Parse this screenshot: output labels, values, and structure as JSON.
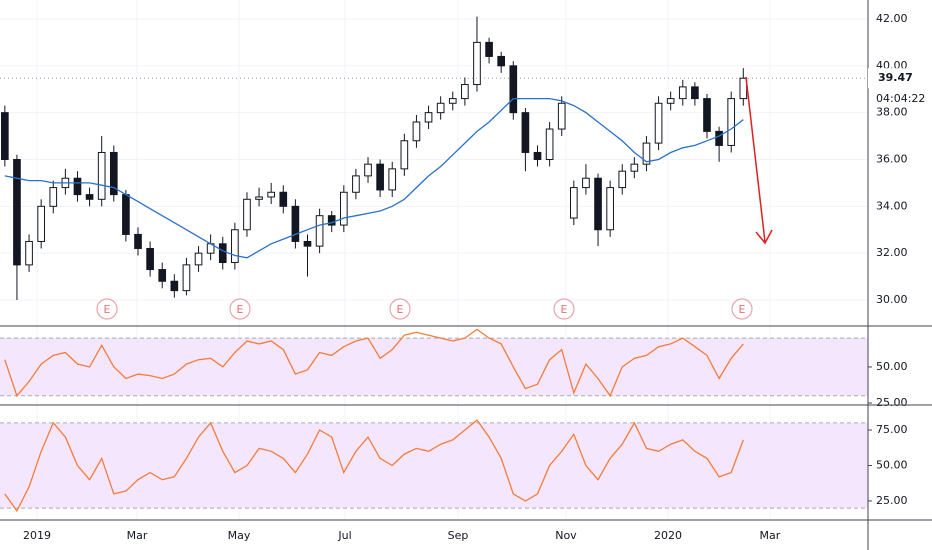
{
  "chart_data": {
    "type": "candlestick",
    "xlim": [
      -0.4,
      71.3
    ],
    "xticks": [
      {
        "value": 2.66,
        "label": "2019"
      },
      {
        "value": 10.92,
        "label": "Mar"
      },
      {
        "value": 19.34,
        "label": "May"
      },
      {
        "value": 28.1,
        "label": "Jul"
      },
      {
        "value": 37.43,
        "label": "Sep"
      },
      {
        "value": 46.35,
        "label": "Nov"
      },
      {
        "value": 54.78,
        "label": "2020"
      },
      {
        "value": 63.2,
        "label": "Mar"
      }
    ],
    "ylim": [
      28.89,
      42.81
    ],
    "yticks": [
      {
        "value": 30,
        "label": "30.00"
      },
      {
        "value": 32,
        "label": "32.00"
      },
      {
        "value": 34,
        "label": "34.00"
      },
      {
        "value": 36,
        "label": "36.00"
      },
      {
        "value": 38,
        "label": "38.00"
      },
      {
        "value": 40,
        "label": "40.00"
      },
      {
        "value": 42,
        "label": "42.00"
      }
    ],
    "grid": true,
    "current_price": 39.47,
    "countdown": "04:04:22",
    "earnings_labels": [
      "E",
      "E",
      "E",
      "E",
      "E"
    ],
    "open": [
      38.0,
      36.0,
      31.5,
      32.5,
      34.0,
      34.8,
      35.2,
      34.5,
      34.3,
      36.3,
      34.5,
      32.8,
      32.2,
      31.3,
      30.8,
      30.4,
      31.5,
      32.0,
      32.4,
      31.6,
      33.0,
      34.3,
      34.4,
      34.6,
      34.0,
      32.5,
      32.3,
      33.6,
      33.2,
      34.6,
      35.3,
      35.8,
      34.7,
      35.6,
      36.8,
      37.6,
      38.0,
      38.4,
      38.6,
      39.2,
      41.0,
      40.4,
      40.0,
      38.0,
      36.3,
      36.0,
      37.3,
      33.5,
      34.8,
      35.2,
      33.0,
      34.8,
      35.5,
      35.8,
      36.7,
      38.4,
      38.6,
      39.1,
      38.6,
      37.2,
      36.6,
      38.6
    ],
    "high": [
      38.3,
      36.2,
      32.8,
      34.3,
      35.1,
      35.6,
      35.5,
      34.8,
      37.0,
      36.6,
      34.7,
      33.1,
      32.5,
      31.6,
      31.1,
      31.8,
      32.3,
      32.8,
      32.7,
      33.3,
      34.6,
      34.8,
      35.0,
      34.9,
      34.3,
      32.8,
      33.9,
      33.8,
      34.9,
      35.6,
      36.1,
      36.0,
      35.9,
      37.1,
      37.9,
      38.3,
      38.7,
      38.9,
      39.5,
      42.1,
      41.2,
      40.6,
      40.2,
      38.2,
      36.6,
      37.6,
      38.7,
      35.1,
      35.8,
      35.4,
      35.1,
      35.8,
      36.1,
      37.0,
      38.7,
      38.9,
      39.4,
      39.3,
      38.8,
      37.4,
      38.9,
      39.9
    ],
    "low": [
      35.7,
      30.0,
      31.2,
      32.2,
      33.7,
      34.5,
      34.2,
      34.0,
      34.0,
      34.2,
      32.5,
      31.9,
      31.0,
      30.5,
      30.1,
      30.2,
      31.2,
      31.7,
      31.3,
      31.3,
      32.7,
      34.0,
      34.1,
      33.7,
      32.2,
      31.0,
      32.0,
      32.9,
      32.9,
      34.3,
      35.0,
      34.4,
      34.4,
      35.3,
      36.5,
      37.3,
      37.7,
      38.1,
      38.3,
      38.9,
      40.1,
      39.7,
      37.7,
      35.5,
      35.7,
      35.7,
      37.0,
      33.2,
      34.5,
      32.3,
      32.7,
      34.5,
      35.2,
      35.5,
      36.4,
      38.1,
      38.3,
      38.3,
      36.9,
      35.9,
      36.3,
      38.3
    ],
    "close": [
      36.0,
      31.5,
      32.5,
      34.0,
      34.8,
      35.2,
      34.5,
      34.3,
      36.3,
      34.5,
      32.8,
      32.2,
      31.3,
      30.8,
      30.4,
      31.5,
      32.0,
      32.4,
      31.6,
      33.0,
      34.3,
      34.4,
      34.6,
      34.0,
      32.5,
      32.3,
      33.6,
      33.2,
      34.6,
      35.3,
      35.8,
      34.7,
      35.6,
      36.8,
      37.6,
      38.0,
      38.4,
      38.6,
      39.2,
      41.0,
      40.4,
      40.0,
      38.0,
      36.3,
      36.0,
      37.3,
      38.4,
      34.8,
      35.2,
      33.0,
      34.8,
      35.5,
      35.8,
      36.7,
      38.4,
      38.6,
      39.1,
      38.6,
      37.2,
      36.6,
      38.6,
      39.47
    ],
    "ma": {
      "color": "#2a72c9",
      "values": [
        35.3,
        35.2,
        35.1,
        35.1,
        35.0,
        35.0,
        35.0,
        35.0,
        34.9,
        34.8,
        34.5,
        34.2,
        33.9,
        33.6,
        33.3,
        33.0,
        32.7,
        32.4,
        32.1,
        31.9,
        31.8,
        32.1,
        32.4,
        32.6,
        32.8,
        33.0,
        33.2,
        33.3,
        33.5,
        33.6,
        33.7,
        33.8,
        34.0,
        34.3,
        34.8,
        35.3,
        35.7,
        36.2,
        36.7,
        37.2,
        37.6,
        38.1,
        38.6,
        38.6,
        38.6,
        38.6,
        38.5,
        38.3,
        38.0,
        37.6,
        37.2,
        36.8,
        36.3,
        35.9,
        36.0,
        36.3,
        36.5,
        36.6,
        36.8,
        37.0,
        37.3,
        37.7
      ]
    },
    "panes": [
      {
        "type": "line",
        "color": "#f57c3a",
        "ylim": [
          24.3,
          77
        ],
        "yticks": [
          {
            "value": 50,
            "label": "50.00"
          },
          {
            "value": 25,
            "label": "25.00"
          }
        ],
        "band": [
          30,
          70
        ],
        "values": [
          55,
          30,
          40,
          52,
          58,
          60,
          52,
          50,
          65,
          50,
          42,
          45,
          44,
          42,
          45,
          52,
          55,
          56,
          50,
          60,
          68,
          66,
          68,
          62,
          45,
          48,
          60,
          58,
          64,
          68,
          70,
          56,
          62,
          72,
          74,
          72,
          70,
          68,
          70,
          76,
          70,
          66,
          50,
          35,
          38,
          55,
          62,
          32,
          52,
          42,
          30,
          50,
          56,
          58,
          64,
          66,
          70,
          64,
          58,
          42,
          56,
          66
        ]
      },
      {
        "type": "line",
        "color": "#f57c3a",
        "ylim": [
          13,
          91.2
        ],
        "yticks": [
          {
            "value": 75,
            "label": "75.00"
          },
          {
            "value": 50,
            "label": "50.00"
          },
          {
            "value": 25,
            "label": "25.00"
          }
        ],
        "band": [
          20,
          80
        ],
        "values": [
          30,
          18,
          35,
          60,
          80,
          70,
          50,
          40,
          55,
          30,
          32,
          40,
          45,
          40,
          42,
          55,
          70,
          80,
          60,
          45,
          50,
          62,
          60,
          55,
          45,
          58,
          75,
          70,
          45,
          60,
          70,
          55,
          50,
          58,
          62,
          60,
          65,
          68,
          75,
          82,
          70,
          55,
          30,
          25,
          30,
          50,
          60,
          72,
          50,
          40,
          55,
          65,
          80,
          62,
          60,
          65,
          68,
          60,
          55,
          42,
          45,
          68
        ]
      }
    ]
  }
}
